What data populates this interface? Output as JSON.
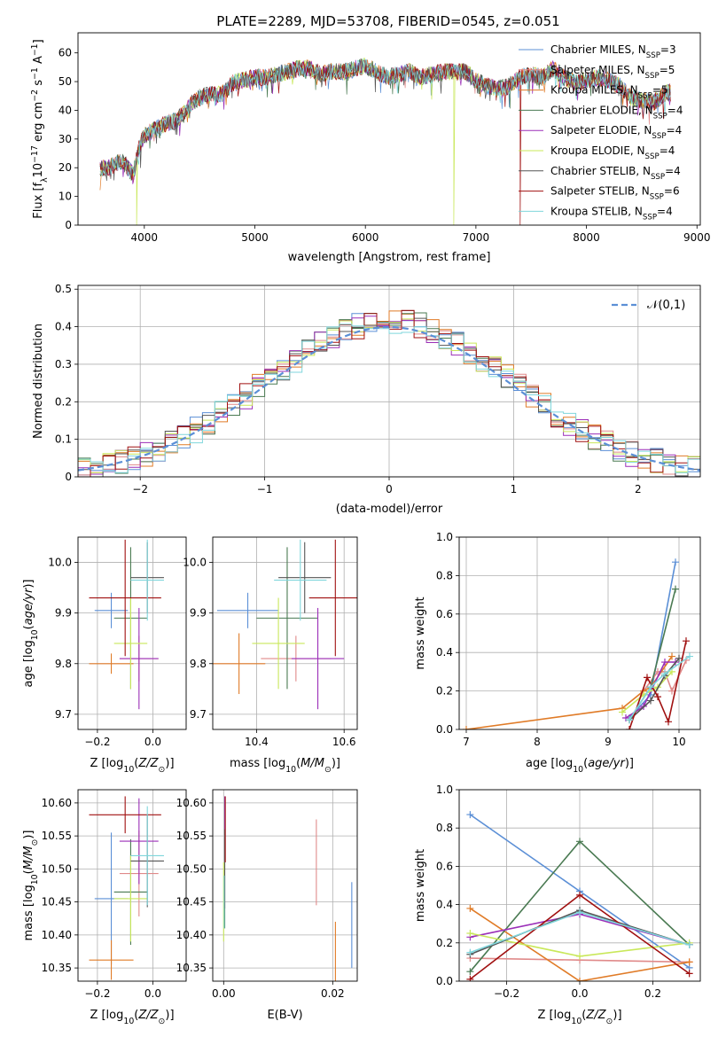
{
  "figure_title": "PLATE=2289, MJD=53708, FIBERID=0545, z=0.051",
  "models": [
    {
      "name": "Chabrier MILES",
      "nssp": "3",
      "color": "#5b8fd6"
    },
    {
      "name": "Salpeter MILES",
      "nssp": "5",
      "color": "#e08a8a"
    },
    {
      "name": "Kroupa MILES",
      "nssp": "5",
      "color": "#e07b27"
    },
    {
      "name": "Chabrier ELODIE",
      "nssp": "4",
      "color": "#4a7a52"
    },
    {
      "name": "Salpeter ELODIE",
      "nssp": "4",
      "color": "#9b2fb8"
    },
    {
      "name": "Kroupa ELODIE",
      "nssp": "4",
      "color": "#c9e85a"
    },
    {
      "name": "Chabrier STELIB",
      "nssp": "4",
      "color": "#555555"
    },
    {
      "name": "Salpeter STELIB",
      "nssp": "6",
      "color": "#a01010"
    },
    {
      "name": "Kroupa STELIB",
      "nssp": "4",
      "color": "#7fd6dc"
    }
  ],
  "chart_data": [
    {
      "id": "spectrum",
      "type": "line",
      "xlabel": "wavelength [Angstrom, rest frame]",
      "ylabel": "Flux [f_λ 10^-17 erg cm^-2 s^-1 A^-1]",
      "xlim": [
        3400,
        9030
      ],
      "ylim": [
        0,
        67
      ],
      "xticks": [
        4000,
        5000,
        6000,
        7000,
        8000,
        9000
      ],
      "yticks": [
        0,
        10,
        20,
        30,
        40,
        50,
        60
      ],
      "grid": false,
      "legend": "top-right",
      "envelope": {
        "x": [
          3600,
          3700,
          3800,
          3900,
          3950,
          4000,
          4100,
          4200,
          4300,
          4400,
          4500,
          4600,
          4700,
          4800,
          4900,
          5000,
          5100,
          5200,
          5300,
          5400,
          5500,
          5600,
          5700,
          5800,
          5900,
          6000,
          6100,
          6200,
          6300,
          6400,
          6500,
          6600,
          6700,
          6800,
          6900,
          7000,
          7100,
          7200,
          7300,
          7400,
          7500,
          7600,
          7700,
          7800,
          7900,
          8000,
          8100,
          8200,
          8300,
          8400,
          8500,
          8600,
          8700,
          8760
        ],
        "y": [
          21,
          22,
          24,
          19,
          28,
          33,
          35,
          37,
          38,
          43,
          46,
          47,
          47,
          51,
          52,
          53,
          53,
          54,
          55,
          56,
          56,
          54,
          55,
          55,
          56,
          57,
          55,
          53,
          54,
          55,
          53,
          54,
          55,
          55,
          55,
          52,
          50,
          49,
          50,
          53,
          54,
          53,
          56,
          53,
          51,
          52,
          53,
          52,
          50,
          46,
          45,
          44,
          47,
          48
        ]
      },
      "dips": [
        {
          "x": 3930,
          "y": 0,
          "model": "Kroupa ELODIE"
        },
        {
          "x": 6800,
          "y": 0,
          "model": "Kroupa ELODIE"
        },
        {
          "x": 7400,
          "y": 0,
          "model": "Salpeter STELIB"
        }
      ]
    },
    {
      "id": "residuals",
      "type": "histogram",
      "xlabel": "(data-model)/error",
      "ylabel": "Normed distribution",
      "xlim": [
        -2.5,
        2.5
      ],
      "ylim": [
        0,
        0.51
      ],
      "xticks": [
        -2,
        -1,
        0,
        1,
        2
      ],
      "yticks": [
        0.0,
        0.1,
        0.2,
        0.3,
        0.4,
        0.5
      ],
      "grid": true,
      "legend": "top-right",
      "reference": {
        "name": "𝒩(0,1)",
        "color": "#5b8fd6",
        "style": "dashed"
      },
      "bin_width": 0.1,
      "bin_start": -2.5
    },
    {
      "id": "age_vs_Z",
      "type": "errorbar",
      "xlabel": "Z [log10(Z/Z☉)]",
      "ylabel": "age [log10(age/yr)]",
      "xlim": [
        -0.27,
        0.12
      ],
      "ylim": [
        9.67,
        10.05
      ],
      "xticks": [
        -0.2,
        0.0
      ],
      "yticks": [
        9.7,
        9.8,
        9.9,
        10.0
      ],
      "points": [
        {
          "model": "Chabrier MILES",
          "x": -0.15,
          "xerr": 0.06,
          "y": 9.905,
          "yerr": 0.035
        },
        {
          "model": "Salpeter MILES",
          "x": -0.05,
          "xerr": 0.07,
          "y": 9.81,
          "yerr": 0.045
        },
        {
          "model": "Kroupa MILES",
          "x": -0.15,
          "xerr": 0.08,
          "y": 9.8,
          "yerr": 0.02
        },
        {
          "model": "Chabrier ELODIE",
          "x": -0.08,
          "xerr": 0.06,
          "y": 9.89,
          "yerr": 0.14
        },
        {
          "model": "Salpeter ELODIE",
          "x": -0.05,
          "xerr": 0.07,
          "y": 9.81,
          "yerr": 0.1
        },
        {
          "model": "Kroupa ELODIE",
          "x": -0.08,
          "xerr": 0.06,
          "y": 9.84,
          "yerr": 0.09
        },
        {
          "model": "Chabrier STELIB",
          "x": -0.02,
          "xerr": 0.06,
          "y": 9.97,
          "yerr": 0.07
        },
        {
          "model": "Salpeter STELIB",
          "x": -0.1,
          "xerr": 0.13,
          "y": 9.93,
          "yerr": 0.115
        },
        {
          "model": "Kroupa STELIB",
          "x": -0.02,
          "xerr": 0.06,
          "y": 9.965,
          "yerr": 0.08
        }
      ]
    },
    {
      "id": "age_vs_mass",
      "type": "errorbar",
      "xlabel": "mass [log10(M/M☉)]",
      "ylabel": "",
      "xlim": [
        10.3,
        10.63
      ],
      "ylim": [
        9.67,
        10.05
      ],
      "xticks": [
        10.4,
        10.6
      ],
      "yticks": [
        9.7,
        9.8,
        9.9,
        10.0
      ],
      "points": [
        {
          "model": "Chabrier MILES",
          "x": 10.38,
          "xerr": 0.07,
          "y": 9.905,
          "yerr": 0.035
        },
        {
          "model": "Salpeter MILES",
          "x": 10.49,
          "xerr": 0.08,
          "y": 9.81,
          "yerr": 0.045
        },
        {
          "model": "Kroupa MILES",
          "x": 10.36,
          "xerr": 0.06,
          "y": 9.8,
          "yerr": 0.06
        },
        {
          "model": "Chabrier ELODIE",
          "x": 10.47,
          "xerr": 0.07,
          "y": 9.89,
          "yerr": 0.14
        },
        {
          "model": "Salpeter ELODIE",
          "x": 10.54,
          "xerr": 0.06,
          "y": 9.81,
          "yerr": 0.1
        },
        {
          "model": "Kroupa ELODIE",
          "x": 10.45,
          "xerr": 0.06,
          "y": 9.84,
          "yerr": 0.09
        },
        {
          "model": "Chabrier STELIB",
          "x": 10.51,
          "xerr": 0.06,
          "y": 9.97,
          "yerr": 0.07
        },
        {
          "model": "Salpeter STELIB",
          "x": 10.58,
          "xerr": 0.06,
          "y": 9.93,
          "yerr": 0.115
        },
        {
          "model": "Kroupa STELIB",
          "x": 10.5,
          "xerr": 0.06,
          "y": 9.965,
          "yerr": 0.08
        }
      ]
    },
    {
      "id": "weight_vs_age",
      "type": "line",
      "xlabel": "age [log10(age/yr)]",
      "ylabel": "mass weight",
      "xlim": [
        6.9,
        10.3
      ],
      "ylim": [
        0,
        1.0
      ],
      "xticks": [
        7,
        8,
        9,
        10
      ],
      "yticks": [
        0.0,
        0.2,
        0.4,
        0.6,
        0.8,
        1.0
      ],
      "series": [
        {
          "model": "Chabrier MILES",
          "x": [
            9.3,
            9.6,
            9.95
          ],
          "y": [
            0.06,
            0.18,
            0.87
          ]
        },
        {
          "model": "Salpeter MILES",
          "x": [
            9.5,
            9.7,
            9.8,
            9.9,
            10.1
          ],
          "y": [
            0.2,
            0.3,
            0.3,
            0.2,
            0.36
          ]
        },
        {
          "model": "Kroupa MILES",
          "x": [
            7.0,
            9.2,
            9.5,
            9.6,
            9.9
          ],
          "y": [
            0.0,
            0.11,
            0.2,
            0.22,
            0.38
          ]
        },
        {
          "model": "Chabrier ELODIE",
          "x": [
            9.3,
            9.6,
            9.95
          ],
          "y": [
            0.05,
            0.22,
            0.73
          ]
        },
        {
          "model": "Salpeter ELODIE",
          "x": [
            9.25,
            9.5,
            9.8,
            9.95
          ],
          "y": [
            0.06,
            0.12,
            0.35,
            0.35
          ]
        },
        {
          "model": "Kroupa ELODIE",
          "x": [
            9.2,
            9.5,
            9.7,
            9.9
          ],
          "y": [
            0.09,
            0.18,
            0.22,
            0.3
          ]
        },
        {
          "model": "Chabrier STELIB",
          "x": [
            9.3,
            9.6,
            9.8,
            10.0
          ],
          "y": [
            0.05,
            0.15,
            0.28,
            0.37
          ]
        },
        {
          "model": "Salpeter STELIB",
          "x": [
            9.3,
            9.55,
            9.7,
            9.85,
            10.1
          ],
          "y": [
            0.0,
            0.27,
            0.17,
            0.04,
            0.46
          ]
        },
        {
          "model": "Kroupa STELIB",
          "x": [
            9.3,
            9.6,
            9.8,
            10.15
          ],
          "y": [
            0.05,
            0.22,
            0.29,
            0.38
          ]
        }
      ]
    },
    {
      "id": "mass_vs_Z",
      "type": "errorbar",
      "xlabel": "Z [log10(Z/Z☉)]",
      "ylabel": "mass [log10(M/M☉)]",
      "xlim": [
        -0.27,
        0.12
      ],
      "ylim": [
        10.33,
        10.62
      ],
      "xticks": [
        -0.2,
        0.0
      ],
      "yticks": [
        10.35,
        10.4,
        10.45,
        10.5,
        10.55,
        10.6
      ],
      "points": [
        {
          "model": "Chabrier MILES",
          "x": -0.15,
          "xerr": 0.06,
          "y": 10.455,
          "yerr": 0.1
        },
        {
          "model": "Salpeter MILES",
          "x": -0.05,
          "xerr": 0.07,
          "y": 10.493,
          "yerr": 0.065
        },
        {
          "model": "Kroupa MILES",
          "x": -0.15,
          "xerr": 0.08,
          "y": 10.362,
          "yerr": 0.03
        },
        {
          "model": "Chabrier ELODIE",
          "x": -0.08,
          "xerr": 0.06,
          "y": 10.465,
          "yerr": 0.08
        },
        {
          "model": "Salpeter ELODIE",
          "x": -0.05,
          "xerr": 0.07,
          "y": 10.542,
          "yerr": 0.065
        },
        {
          "model": "Kroupa ELODIE",
          "x": -0.08,
          "xerr": 0.06,
          "y": 10.455,
          "yerr": 0.065
        },
        {
          "model": "Chabrier STELIB",
          "x": -0.02,
          "xerr": 0.06,
          "y": 10.512,
          "yerr": 0.07
        },
        {
          "model": "Salpeter STELIB",
          "x": -0.1,
          "xerr": 0.13,
          "y": 10.582,
          "yerr": 0.028
        },
        {
          "model": "Kroupa STELIB",
          "x": -0.02,
          "xerr": 0.06,
          "y": 10.52,
          "yerr": 0.075
        }
      ]
    },
    {
      "id": "mass_vs_EBV",
      "type": "errorbar",
      "xlabel": "E(B-V)",
      "ylabel": "",
      "xlim": [
        -0.002,
        0.0245
      ],
      "ylim": [
        10.33,
        10.62
      ],
      "xticks": [
        0.0,
        0.02
      ],
      "yticks": [
        10.35,
        10.4,
        10.45,
        10.5,
        10.55,
        10.6
      ],
      "points": [
        {
          "model": "Chabrier MILES",
          "x": 0.0235,
          "xerr": 0,
          "y": 10.415,
          "yerr": 0.065
        },
        {
          "model": "Salpeter MILES",
          "x": 0.017,
          "xerr": 0,
          "y": 10.51,
          "yerr": 0.065
        },
        {
          "model": "Kroupa MILES",
          "x": 0.0205,
          "xerr": 0,
          "y": 10.37,
          "yerr": 0.05
        },
        {
          "model": "Chabrier ELODIE",
          "x": 0.0002,
          "xerr": 0,
          "y": 10.45,
          "yerr": 0.04
        },
        {
          "model": "Salpeter ELODIE",
          "x": 0.0002,
          "xerr": 0,
          "y": 10.56,
          "yerr": 0.05
        },
        {
          "model": "Kroupa ELODIE",
          "x": 0.0,
          "xerr": 0,
          "y": 10.45,
          "yerr": 0.06
        },
        {
          "model": "Chabrier STELIB",
          "x": 0.0002,
          "xerr": 0,
          "y": 10.5,
          "yerr": 0.06
        },
        {
          "model": "Salpeter STELIB",
          "x": 0.0003,
          "xerr": 0,
          "y": 10.56,
          "yerr": 0.05
        },
        {
          "model": "Kroupa STELIB",
          "x": 0.0001,
          "xerr": 0,
          "y": 10.45,
          "yerr": 0.04
        }
      ]
    },
    {
      "id": "weight_vs_Z",
      "type": "line",
      "xlabel": "Z [log10(Z/Z☉)]",
      "ylabel": "mass weight",
      "xlim": [
        -0.33,
        0.33
      ],
      "ylim": [
        0,
        1.0
      ],
      "xticks": [
        -0.2,
        0.0,
        0.2
      ],
      "yticks": [
        0.0,
        0.2,
        0.4,
        0.6,
        0.8,
        1.0
      ],
      "series": [
        {
          "model": "Chabrier MILES",
          "x": [
            -0.3,
            0.0,
            0.3
          ],
          "y": [
            0.87,
            0.47,
            0.07
          ]
        },
        {
          "model": "Salpeter MILES",
          "x": [
            -0.3,
            0.0,
            0.3
          ],
          "y": [
            0.12,
            0.11,
            0.1
          ]
        },
        {
          "model": "Kroupa MILES",
          "x": [
            -0.3,
            0.0,
            0.3
          ],
          "y": [
            0.38,
            0.0,
            0.1
          ]
        },
        {
          "model": "Chabrier ELODIE",
          "x": [
            -0.3,
            0.0,
            0.3
          ],
          "y": [
            0.05,
            0.73,
            0.19
          ]
        },
        {
          "model": "Salpeter ELODIE",
          "x": [
            -0.3,
            0.0,
            0.3
          ],
          "y": [
            0.23,
            0.35,
            0.19
          ]
        },
        {
          "model": "Kroupa ELODIE",
          "x": [
            -0.3,
            0.0,
            0.3
          ],
          "y": [
            0.25,
            0.13,
            0.2
          ]
        },
        {
          "model": "Chabrier STELIB",
          "x": [
            -0.3,
            0.0,
            0.3
          ],
          "y": [
            0.14,
            0.37,
            0.19
          ]
        },
        {
          "model": "Salpeter STELIB",
          "x": [
            -0.3,
            0.0,
            0.3
          ],
          "y": [
            0.01,
            0.45,
            0.04
          ]
        },
        {
          "model": "Kroupa STELIB",
          "x": [
            -0.3,
            0.0,
            0.3
          ],
          "y": [
            0.15,
            0.36,
            0.19
          ]
        }
      ]
    }
  ]
}
